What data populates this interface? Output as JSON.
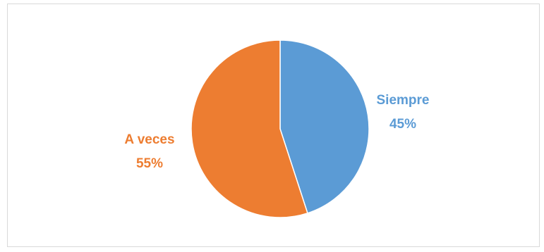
{
  "chart_data": {
    "type": "pie",
    "title": "",
    "slices": [
      {
        "label": "Siempre",
        "value": 45,
        "value_label": "45%",
        "color": "#5B9BD5"
      },
      {
        "label": "A veces",
        "value": 55,
        "value_label": "55%",
        "color": "#ED7D31"
      }
    ],
    "start_angle": "12 o'clock",
    "direction": "clockwise",
    "legend": "none",
    "data_labels": "outside"
  }
}
